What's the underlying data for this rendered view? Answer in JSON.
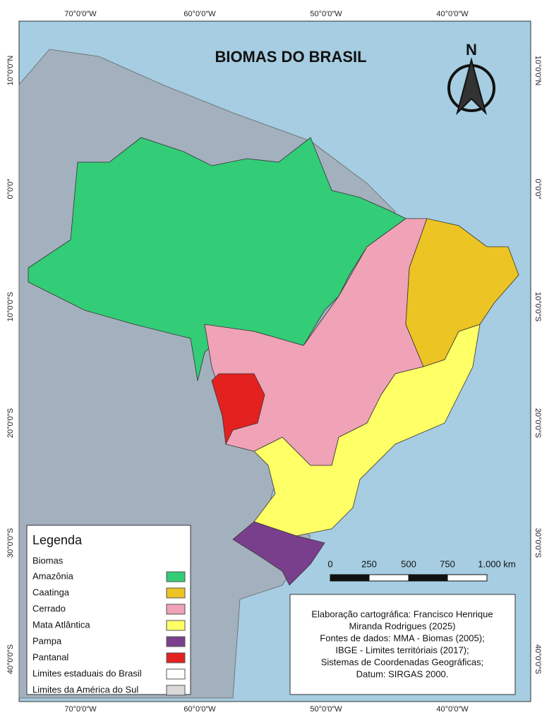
{
  "title": "BIOMAS DO BRASIL",
  "north": "N",
  "longitude_labels": [
    "70°0′0″W",
    "60°0′0″W",
    "50°0′0″W",
    "40°0′0″W"
  ],
  "latitude_labels": [
    "10°0′0″N",
    "0°0′0″",
    "10°0′0″S",
    "20°0′0″S",
    "30°0′0″S",
    "40°0′0″S"
  ],
  "legend": {
    "title": "Legenda",
    "section": "Biomas",
    "biomes": [
      {
        "name": "Amazônia",
        "color": "#33cc77"
      },
      {
        "name": "Caatinga",
        "color": "#ecc423"
      },
      {
        "name": "Cerrado",
        "color": "#f0a3b6"
      },
      {
        "name": "Mata Atlântica",
        "color": "#ffff66"
      },
      {
        "name": "Pampa",
        "color": "#7a3f8c"
      },
      {
        "name": "Pantanal",
        "color": "#e3211f"
      }
    ],
    "boundaries": [
      {
        "name": "Limites estaduais do Brasil",
        "color": "#ffffff"
      },
      {
        "name": "Limites da América do Sul",
        "color": "#d9d9d9"
      }
    ]
  },
  "scale_bar": {
    "labels": [
      "0",
      "250",
      "500",
      "750",
      "1.000 km"
    ]
  },
  "credits": [
    "Elaboração cartográfica: Francisco Henrique",
    "Miranda Rodrigues (2025)",
    "Fontes de dados: MMA - Biomas (2005);",
    "IBGE - Limites territóriais (2017);",
    "Sistemas de Coordenadas Geográficas;",
    "Datum: SIRGAS 2000."
  ]
}
